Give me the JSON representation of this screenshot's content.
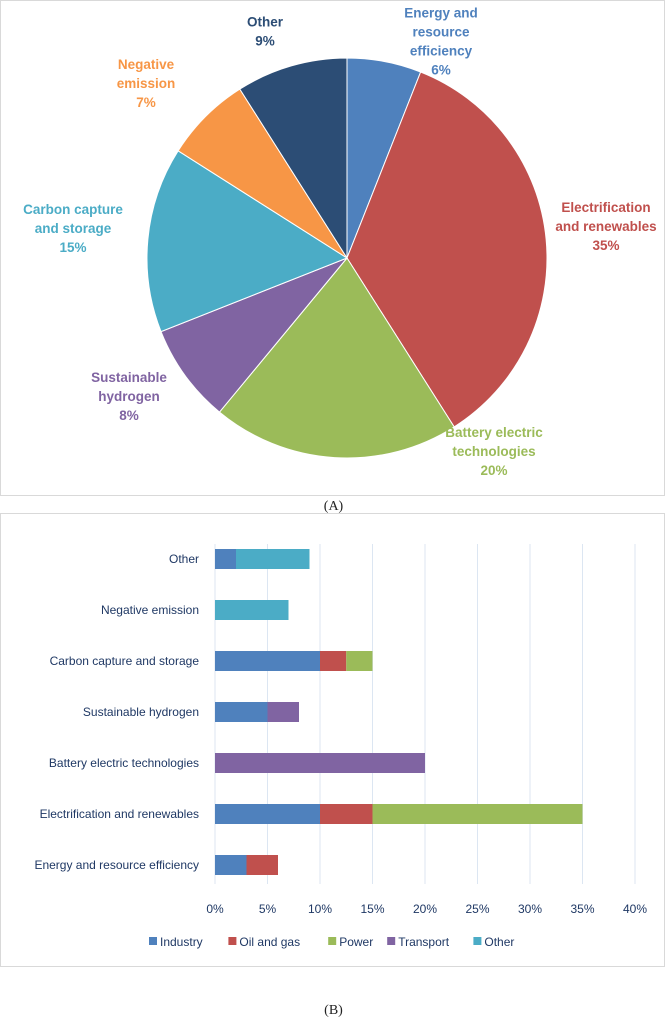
{
  "chart_data": [
    {
      "type": "pie",
      "caption": "(A)",
      "start": "top",
      "direction": "clockwise",
      "slices": [
        {
          "label": [
            "Energy and",
            "resource",
            "efficiency"
          ],
          "pct": "6%",
          "value": 6,
          "color": "#4F81BD"
        },
        {
          "label": [
            "Electrification",
            "and renewables"
          ],
          "pct": "35%",
          "value": 35,
          "color": "#C0504D"
        },
        {
          "label": [
            "Battery electric",
            "technologies"
          ],
          "pct": "20%",
          "value": 20,
          "color": "#9BBB59"
        },
        {
          "label": [
            "Sustainable",
            "hydrogen"
          ],
          "pct": "8%",
          "value": 8,
          "color": "#8064A2"
        },
        {
          "label": [
            "Carbon capture",
            "and storage"
          ],
          "pct": "15%",
          "value": 15,
          "color": "#4BACC6"
        },
        {
          "label": [
            "Negative",
            "emission"
          ],
          "pct": "7%",
          "value": 7,
          "color": "#F79646"
        },
        {
          "label": [
            "Other"
          ],
          "pct": "9%",
          "value": 9,
          "color": "#2C4D75"
        }
      ]
    },
    {
      "type": "bar",
      "orientation": "horizontal",
      "stacked": true,
      "caption": "(B)",
      "categories": [
        "Other",
        "Negative emission",
        "Carbon capture and storage",
        "Sustainable hydrogen",
        "Battery electric technologies",
        "Electrification and renewables",
        "Energy and resource efficiency"
      ],
      "series": [
        {
          "name": "Industry",
          "color": "#4F81BD",
          "values": [
            2,
            0,
            10,
            5,
            0,
            10,
            3
          ]
        },
        {
          "name": "Oil and gas",
          "color": "#C0504D",
          "values": [
            0,
            0,
            2.5,
            0,
            0,
            5,
            3
          ]
        },
        {
          "name": "Power",
          "color": "#9BBB59",
          "values": [
            0,
            0,
            2.5,
            0,
            0,
            20,
            0
          ]
        },
        {
          "name": "Transport",
          "color": "#8064A2",
          "values": [
            0,
            0,
            0,
            3,
            20,
            0,
            0
          ]
        },
        {
          "name": "Other",
          "color": "#4BACC6",
          "values": [
            7,
            7,
            0,
            0,
            0,
            0,
            0
          ]
        }
      ],
      "xlim": [
        0,
        40
      ],
      "xticks": [
        "0%",
        "5%",
        "10%",
        "15%",
        "20%",
        "25%",
        "30%",
        "35%",
        "40%"
      ],
      "grid": true,
      "legend": "bottom"
    }
  ]
}
